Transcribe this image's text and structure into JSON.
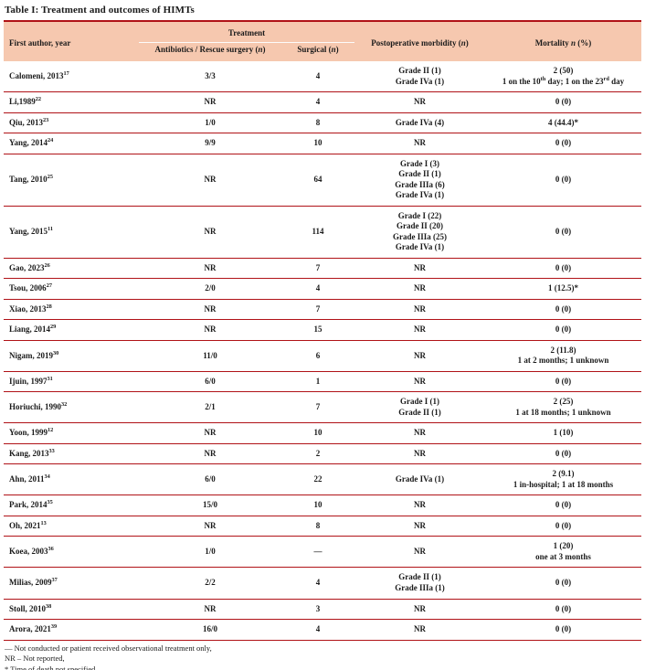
{
  "title": "Table I: Treatment and outcomes of HIMTs",
  "colors": {
    "header_bg": "#f6c8af",
    "rule": "#b01217",
    "text": "#1a1a1a",
    "treatment_underline": "#fdfbfa"
  },
  "columns": {
    "author": "First author, year",
    "treatment_group": "Treatment",
    "antibiotics": {
      "pre": "Antibiotics / Rescue surgery (",
      "it": "n",
      "post": ")"
    },
    "surgical": {
      "pre": "Surgical (",
      "it": "n",
      "post": ")"
    },
    "morbidity": {
      "pre": "Postoperative morbidity (",
      "it": "n",
      "post": ")"
    },
    "mortality": {
      "pre": "Mortality ",
      "it": "n",
      "post": " (%)"
    }
  },
  "rows": [
    {
      "author": "Calomeni, 2013",
      "sup": "17",
      "antibiotics": "3/3",
      "surgical": "4",
      "morbidity": [
        [
          "Grade II (1)"
        ],
        [
          "Grade IVa (1)"
        ]
      ],
      "mortality": [
        [
          "2 (50)"
        ],
        [
          "1 on the 10",
          {
            "sup": "th"
          },
          " day; 1 on the 23",
          {
            "sup": "rd"
          },
          " day"
        ]
      ]
    },
    {
      "author": "Li,1989",
      "sup": "22",
      "antibiotics": "NR",
      "surgical": "4",
      "morbidity": [
        [
          "NR"
        ]
      ],
      "mortality": [
        [
          "0 (0)"
        ]
      ]
    },
    {
      "author": "Qiu, 2013",
      "sup": "23",
      "antibiotics": "1/0",
      "surgical": "8",
      "morbidity": [
        [
          "Grade IVa (4)"
        ]
      ],
      "mortality": [
        [
          "4 (44.4)*"
        ]
      ]
    },
    {
      "author": "Yang, 2014",
      "sup": "24",
      "antibiotics": "9/9",
      "surgical": "10",
      "morbidity": [
        [
          "NR"
        ]
      ],
      "mortality": [
        [
          "0 (0)"
        ]
      ]
    },
    {
      "author": "Tang, 2010",
      "sup": "25",
      "antibiotics": "NR",
      "surgical": "64",
      "morbidity": [
        [
          "Grade I (3)"
        ],
        [
          "Grade II (1)"
        ],
        [
          "Grade IIIa (6)"
        ],
        [
          "Grade IVa (1)"
        ]
      ],
      "mortality": [
        [
          "0 (0)"
        ]
      ]
    },
    {
      "author": "Yang, 2015",
      "sup": "11",
      "antibiotics": "NR",
      "surgical": "114",
      "morbidity": [
        [
          "Grade I (22)"
        ],
        [
          "Grade II (20)"
        ],
        [
          "Grade IIIa (25)"
        ],
        [
          "Grade IVa (1)"
        ]
      ],
      "mortality": [
        [
          "0 (0)"
        ]
      ]
    },
    {
      "author": "Gao, 2023",
      "sup": "26",
      "antibiotics": "NR",
      "surgical": "7",
      "morbidity": [
        [
          "NR"
        ]
      ],
      "mortality": [
        [
          "0 (0)"
        ]
      ]
    },
    {
      "author": "Tsou, 2006",
      "sup": "27",
      "antibiotics": "2/0",
      "surgical": "4",
      "morbidity": [
        [
          "NR"
        ]
      ],
      "mortality": [
        [
          "1 (12.5)*"
        ]
      ]
    },
    {
      "author": "Xiao, 2013",
      "sup": "28",
      "antibiotics": "NR",
      "surgical": "7",
      "morbidity": [
        [
          "NR"
        ]
      ],
      "mortality": [
        [
          "0 (0)"
        ]
      ]
    },
    {
      "author": "Liang, 2014",
      "sup": "29",
      "antibiotics": "NR",
      "surgical": "15",
      "morbidity": [
        [
          "NR"
        ]
      ],
      "mortality": [
        [
          "0 (0)"
        ]
      ]
    },
    {
      "author": "Nigam, 2019",
      "sup": "30",
      "antibiotics": "11/0",
      "surgical": "6",
      "morbidity": [
        [
          "NR"
        ]
      ],
      "mortality": [
        [
          "2 (11.8)"
        ],
        [
          "1 at 2 months; 1 unknown"
        ]
      ]
    },
    {
      "author": "Ijuin, 1997",
      "sup": "31",
      "antibiotics": "6/0",
      "surgical": "1",
      "morbidity": [
        [
          "NR"
        ]
      ],
      "mortality": [
        [
          "0 (0)"
        ]
      ]
    },
    {
      "author": "Horiuchi, 1990",
      "sup": "32",
      "antibiotics": "2/1",
      "surgical": "7",
      "morbidity": [
        [
          "Grade I (1)"
        ],
        [
          "Grade II (1)"
        ]
      ],
      "mortality": [
        [
          "2 (25)"
        ],
        [
          "1 at 18 months; 1 unknown"
        ]
      ]
    },
    {
      "author": "Yoon, 1999",
      "sup": "12",
      "antibiotics": "NR",
      "surgical": "10",
      "morbidity": [
        [
          "NR"
        ]
      ],
      "mortality": [
        [
          "1 (10)"
        ]
      ]
    },
    {
      "author": "Kang, 2013",
      "sup": "33",
      "antibiotics": "NR",
      "surgical": "2",
      "morbidity": [
        [
          "NR"
        ]
      ],
      "mortality": [
        [
          "0 (0)"
        ]
      ]
    },
    {
      "author": "Ahn, 2011",
      "sup": "34",
      "antibiotics": "6/0",
      "surgical": "22",
      "morbidity": [
        [
          "Grade IVa (1)"
        ]
      ],
      "mortality": [
        [
          "2 (9.1)"
        ],
        [
          "1 in-hospital; 1 at 18 months"
        ]
      ]
    },
    {
      "author": "Park, 2014",
      "sup": "35",
      "antibiotics": "15/0",
      "surgical": "10",
      "morbidity": [
        [
          "NR"
        ]
      ],
      "mortality": [
        [
          "0 (0)"
        ]
      ]
    },
    {
      "author": "Oh, 2021",
      "sup": "13",
      "antibiotics": "NR",
      "surgical": "8",
      "morbidity": [
        [
          "NR"
        ]
      ],
      "mortality": [
        [
          "0 (0)"
        ]
      ]
    },
    {
      "author": "Koea, 2003",
      "sup": "36",
      "antibiotics": "1/0",
      "surgical": "—",
      "morbidity": [
        [
          "NR"
        ]
      ],
      "mortality": [
        [
          "1 (20)"
        ],
        [
          "one at 3 months"
        ]
      ]
    },
    {
      "author": "Milias, 2009",
      "sup": "37",
      "antibiotics": "2/2",
      "surgical": "4",
      "morbidity": [
        [
          "Grade II (1)"
        ],
        [
          "Grade IIIa (1)"
        ]
      ],
      "mortality": [
        [
          "0 (0)"
        ]
      ]
    },
    {
      "author": "Stoll, 2010",
      "sup": "38",
      "antibiotics": "NR",
      "surgical": "3",
      "morbidity": [
        [
          "NR"
        ]
      ],
      "mortality": [
        [
          "0 (0)"
        ]
      ]
    },
    {
      "author": "Arora, 2021",
      "sup": "39",
      "antibiotics": "16/0",
      "surgical": "4",
      "morbidity": [
        [
          "NR"
        ]
      ],
      "mortality": [
        [
          "0 (0)"
        ]
      ]
    }
  ],
  "footnotes": [
    [
      "— Not conducted or patient received observational treatment only,"
    ],
    [
      "NR – Not reported,"
    ],
    [
      "* Time of death not specified"
    ],
    [
      "Postoperative complications are graded with the Clavien-Dindo classification",
      {
        "sup": "21"
      }
    ]
  ]
}
